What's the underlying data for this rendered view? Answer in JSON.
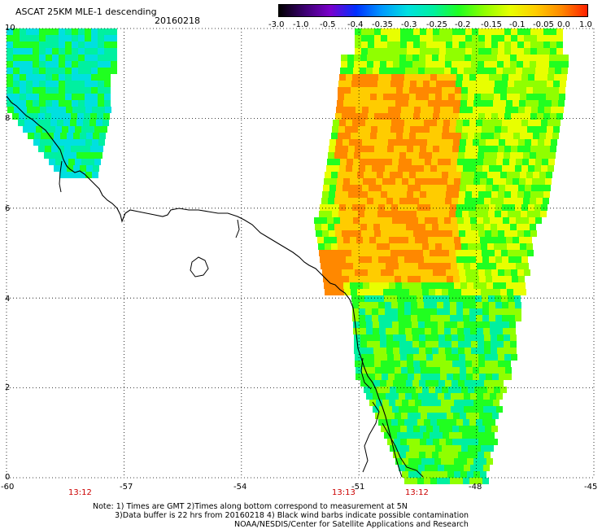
{
  "header": {
    "title": "ASCAT 25KM MLE-1 descending",
    "date": "20160218"
  },
  "colorbar": {
    "labels": [
      "-3.0",
      "-1.0",
      "-0.5",
      "-0.4",
      "-0.35",
      "-0.3",
      "-0.25",
      "-0.2",
      "-0.15",
      "-0.1",
      "-0.05",
      "0.0",
      "1.0"
    ],
    "colors": [
      "#000000",
      "#3b0070",
      "#7a00cc",
      "#0030ff",
      "#0099ff",
      "#00e0e0",
      "#00f0a0",
      "#20ff20",
      "#90ff00",
      "#e8ff00",
      "#ffcc00",
      "#ff8800",
      "#ff2000"
    ]
  },
  "axes": {
    "x_ticks": [
      "-60",
      "-57",
      "-54",
      "-51",
      "-48",
      "-45"
    ],
    "y_ticks": [
      "0",
      "2",
      "4",
      "6",
      "8",
      "10"
    ],
    "lon_range": [
      -60,
      -45
    ],
    "lat_range": [
      0,
      10
    ]
  },
  "swath_times": [
    "13:12",
    "13:13",
    "13:12"
  ],
  "notes": {
    "line1": "Note: 1) Times are GMT 2)Times along bottom correspond to measurement at 5N",
    "line2": "3)Data buffer is 22 hrs from 20160218 4) Black wind barbs indicate possible contamination",
    "line3": "NOAA/NESDIS/Center for Satellite Applications and Research"
  },
  "chart_data": {
    "type": "heatmap",
    "variable": "MLE-1",
    "bins": [
      "-3.0",
      "-1.0",
      "-0.5",
      "-0.4",
      "-0.35",
      "-0.3",
      "-0.25",
      "-0.2",
      "-0.15",
      "-0.1",
      "-0.05",
      "0.0",
      "1.0"
    ]
  }
}
